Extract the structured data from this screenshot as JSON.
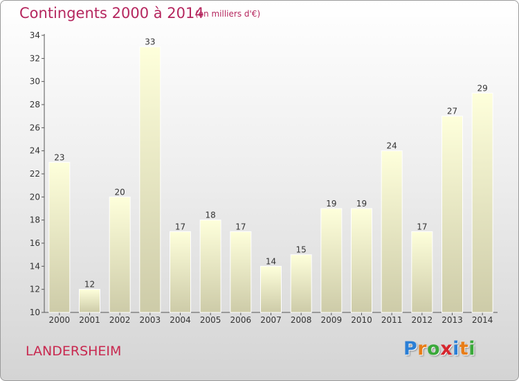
{
  "header": {
    "title": "Contingents 2000 à 2014",
    "subtitle": "(en milliers d'€)"
  },
  "footer": {
    "place": "LANDERSHEIM",
    "logo_letters": [
      "P",
      "r",
      "o",
      "x",
      "i",
      "t",
      "i"
    ]
  },
  "colors": {
    "title": "#b5265e",
    "bar_top": "#feffdb",
    "bar_bottom": "#cdcba8",
    "logo": [
      "#2b7fd6",
      "#e87d18",
      "#3aa93a",
      "#d7262e",
      "#2b7fd6",
      "#e87d18",
      "#3aa93a"
    ]
  },
  "chart_data": {
    "type": "bar",
    "title": "Contingents 2000 à 2014",
    "subtitle": "(en milliers d'€)",
    "xlabel": "",
    "ylabel": "",
    "categories": [
      "2000",
      "2001",
      "2002",
      "2003",
      "2004",
      "2005",
      "2006",
      "2007",
      "2008",
      "2009",
      "2010",
      "2011",
      "2012",
      "2013",
      "2014"
    ],
    "values": [
      23,
      12,
      20,
      33,
      17,
      18,
      17,
      14,
      15,
      19,
      19,
      24,
      17,
      27,
      29
    ],
    "ylim": [
      10,
      34
    ],
    "yticks": [
      10,
      12,
      14,
      16,
      18,
      20,
      22,
      24,
      26,
      28,
      30,
      32,
      34
    ],
    "grid": false,
    "legend": "none"
  }
}
